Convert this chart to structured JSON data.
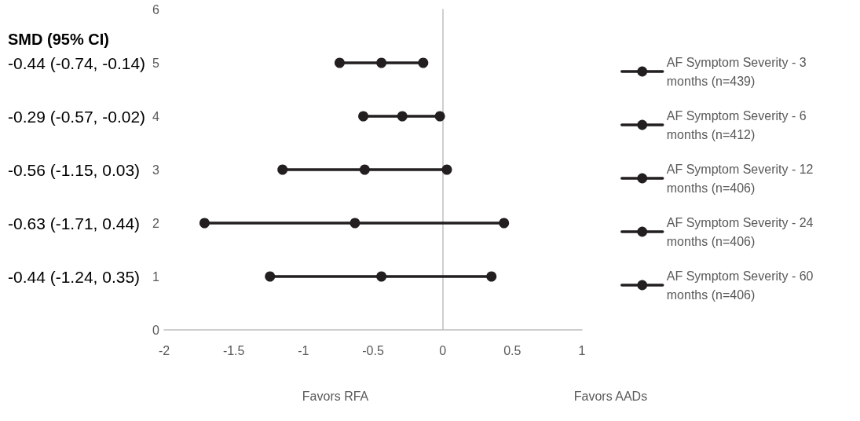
{
  "chart_data": {
    "type": "line",
    "annotations": [
      "SMD (95% CI)",
      "-0.44 (-0.74, -0.14)",
      "-0.29 (-0.57, -0.02)",
      "-0.56 (-1.15, 0.03)",
      "-0.63 (-1.71, 0.44)",
      "-0.44 (-1.24, 0.35)",
      "Favors RFA",
      "Favors AADs"
    ],
    "series": [
      {
        "name": "AF Symptom Severity - 3 months (n=439)",
        "color": "#231f20",
        "x": [
          -0.74,
          -0.44,
          -0.14
        ],
        "values": [
          5,
          5,
          5
        ]
      },
      {
        "name": "AF Symptom Severity - 6 months (n=412)",
        "color": "#231f20",
        "x": [
          -0.57,
          -0.29,
          -0.02
        ],
        "values": [
          4,
          4,
          4
        ]
      },
      {
        "name": "AF Symptom Severity - 12 months (n=406)",
        "color": "#231f20",
        "x": [
          -1.15,
          -0.56,
          0.03
        ],
        "values": [
          3,
          3,
          3
        ]
      },
      {
        "name": "AF Symptom Severity - 24 months (n=406)",
        "color": "#231f20",
        "x": [
          -1.71,
          -0.63,
          0.44
        ],
        "values": [
          2,
          2,
          2
        ]
      },
      {
        "name": "AF Symptom Severity - 60 months (n=406)",
        "color": "#231f20",
        "x": [
          -1.24,
          -0.44,
          0.35
        ],
        "values": [
          1,
          1,
          1
        ]
      }
    ],
    "xlim": [
      -2,
      1
    ],
    "xticks": [
      -2,
      -1.5,
      -1,
      -0.5,
      0,
      0.5,
      1
    ],
    "ylim": [
      0,
      6
    ],
    "yticks": [
      0,
      1,
      2,
      3,
      4,
      5,
      6
    ],
    "legend": "right",
    "marker": "circle",
    "line_style": "solid"
  }
}
